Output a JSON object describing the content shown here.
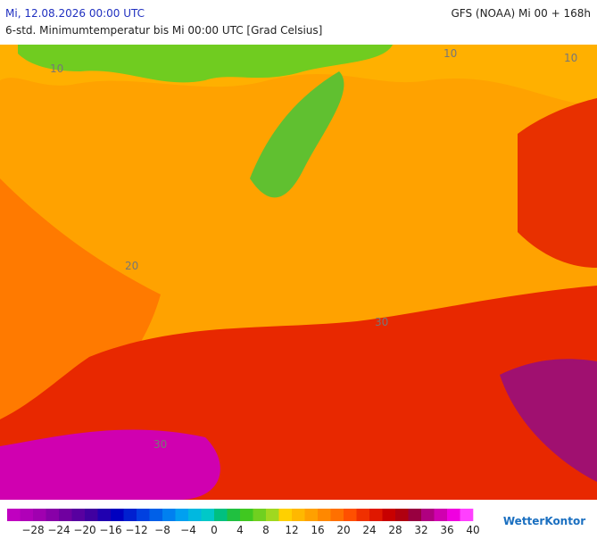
{
  "header": {
    "date": "Mi, 12.08.2026 00:00 UTC",
    "model": "GFS (NOAA) Mi 00 + 168h",
    "subtitle": "6-std. Minimumtemperatur bis Mi 00:00 UTC [Grad Celsius]"
  },
  "map": {
    "contour_labels": [
      "10",
      "10",
      "10",
      "30",
      "30",
      "20"
    ]
  },
  "colorbar": {
    "labels": [
      "−28",
      "−24",
      "−20",
      "−16",
      "−12",
      "−8",
      "−4",
      "0",
      "4",
      "8",
      "12",
      "16",
      "20",
      "24",
      "28",
      "32",
      "36",
      "40"
    ],
    "colors": [
      "#c000c0",
      "#b000b8",
      "#a000b0",
      "#8800a8",
      "#7000a0",
      "#5800a0",
      "#4000a0",
      "#2000b0",
      "#0000c0",
      "#0020d0",
      "#0040e0",
      "#0060e8",
      "#0080f0",
      "#00a0f0",
      "#00b8e0",
      "#00c8c8",
      "#00c080",
      "#20c040",
      "#40c820",
      "#70d020",
      "#a0d820",
      "#ffd000",
      "#ffb800",
      "#ffa000",
      "#ff8800",
      "#ff7000",
      "#ff5000",
      "#f03000",
      "#e01800",
      "#c80000",
      "#b00010",
      "#980040",
      "#b00080",
      "#d000b0",
      "#f000e0",
      "#ff40ff"
    ]
  },
  "logo": "WetterKontor"
}
